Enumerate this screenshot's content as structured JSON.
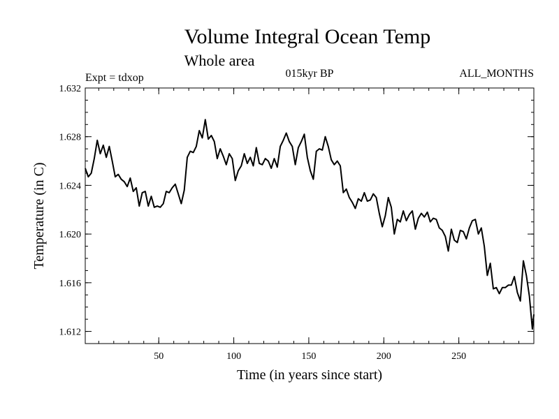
{
  "chart_data": {
    "type": "line",
    "title": "Volume Integral Ocean Temp",
    "subtitle": "Whole area",
    "expt_label": "Expt = tdxop",
    "period_label": "015kyr BP",
    "months_label": "ALL_MONTHS",
    "xlabel": "Time (in years since start)",
    "ylabel": "Temperature (in C)",
    "xlim": [
      1,
      300
    ],
    "ylim": [
      1.611,
      1.632
    ],
    "x_ticks": [
      50,
      100,
      150,
      200,
      250
    ],
    "y_ticks": [
      "1.612",
      "1.616",
      "1.620",
      "1.624",
      "1.628",
      "1.632"
    ],
    "grid": false,
    "series": [
      {
        "x": [
          1,
          3,
          5,
          7,
          9,
          11,
          13,
          15,
          17,
          19,
          21,
          23,
          25,
          27,
          29,
          31,
          33,
          35,
          37,
          39,
          41,
          43,
          45,
          47,
          49,
          51,
          53,
          55,
          57,
          59,
          61,
          63,
          65,
          67,
          69,
          71,
          73,
          75,
          77,
          79,
          81,
          83,
          85,
          87,
          89,
          91,
          93,
          95,
          97,
          99,
          101,
          103,
          105,
          107,
          109,
          111,
          113,
          115,
          117,
          119,
          121,
          123,
          125,
          127,
          129,
          131,
          133,
          135,
          137,
          139,
          141,
          143,
          145,
          147,
          149,
          151,
          153,
          155,
          157,
          159,
          161,
          163,
          165,
          167,
          169,
          171,
          173,
          175,
          177,
          179,
          181,
          183,
          185,
          187,
          189,
          191,
          193,
          195,
          197,
          199,
          201,
          203,
          205,
          207,
          209,
          211,
          213,
          215,
          217,
          219,
          221,
          223,
          225,
          227,
          229,
          231,
          233,
          235,
          237,
          239,
          241,
          243,
          245,
          247,
          249,
          251,
          253,
          255,
          257,
          259,
          261,
          263,
          265,
          267,
          269,
          271,
          273,
          275,
          277,
          279,
          281,
          283,
          285,
          287,
          289,
          291,
          293,
          295,
          297,
          299,
          300
        ],
        "y": [
          1.6254,
          1.6247,
          1.625,
          1.6262,
          1.6277,
          1.6266,
          1.6273,
          1.6263,
          1.6272,
          1.626,
          1.6247,
          1.6249,
          1.6245,
          1.6243,
          1.6239,
          1.6246,
          1.6235,
          1.6238,
          1.6223,
          1.6234,
          1.6235,
          1.6223,
          1.6231,
          1.6222,
          1.6223,
          1.6222,
          1.6225,
          1.6235,
          1.6234,
          1.6238,
          1.6241,
          1.6233,
          1.6225,
          1.6236,
          1.6263,
          1.6268,
          1.6267,
          1.6272,
          1.6285,
          1.6279,
          1.6294,
          1.6278,
          1.6281,
          1.6276,
          1.6262,
          1.627,
          1.6264,
          1.6257,
          1.6266,
          1.6262,
          1.6244,
          1.6252,
          1.6256,
          1.6266,
          1.6258,
          1.6263,
          1.6256,
          1.6271,
          1.6258,
          1.6257,
          1.6262,
          1.626,
          1.6254,
          1.6262,
          1.6255,
          1.6272,
          1.6277,
          1.6283,
          1.6276,
          1.6272,
          1.6257,
          1.6271,
          1.6276,
          1.6282,
          1.6263,
          1.6252,
          1.6245,
          1.6268,
          1.627,
          1.6269,
          1.628,
          1.6272,
          1.6261,
          1.6257,
          1.626,
          1.6256,
          1.6234,
          1.6237,
          1.623,
          1.6226,
          1.6221,
          1.6229,
          1.6227,
          1.6234,
          1.6227,
          1.6228,
          1.6233,
          1.623,
          1.6217,
          1.6206,
          1.6215,
          1.623,
          1.6222,
          1.62,
          1.6212,
          1.621,
          1.6219,
          1.6211,
          1.6216,
          1.6219,
          1.6204,
          1.6213,
          1.6217,
          1.6214,
          1.6218,
          1.621,
          1.6213,
          1.6212,
          1.6205,
          1.6203,
          1.6198,
          1.6186,
          1.6204,
          1.6195,
          1.6193,
          1.6203,
          1.6202,
          1.6196,
          1.6205,
          1.6211,
          1.6212,
          1.62,
          1.6205,
          1.619,
          1.6166,
          1.6176,
          1.6155,
          1.6156,
          1.6151,
          1.6156,
          1.6156,
          1.6158,
          1.6158,
          1.6165,
          1.6152,
          1.6145,
          1.6178,
          1.6166,
          1.6149,
          1.6122,
          1.6134
        ]
      }
    ]
  }
}
